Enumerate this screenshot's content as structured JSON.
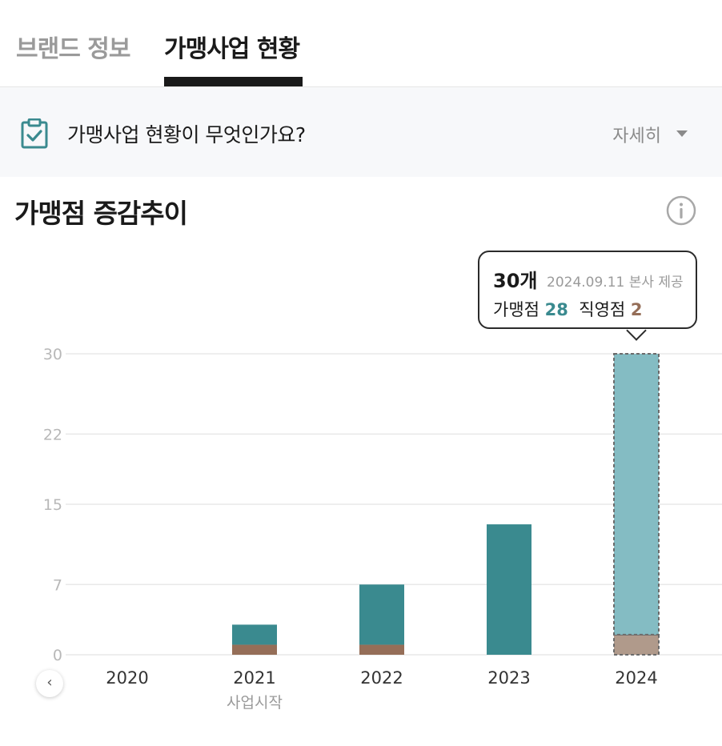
{
  "tabs": [
    {
      "label": "브랜드 정보",
      "active": false
    },
    {
      "label": "가맹사업 현황",
      "active": true
    }
  ],
  "faq": {
    "icon": "clipboard-check-icon",
    "question": "가맹사업 현황이 무엇인가요?",
    "more_label": "자세히",
    "more_icon": "caret-down-icon"
  },
  "section": {
    "title": "가맹점 증감추이",
    "info_icon": "info-icon"
  },
  "tooltip": {
    "total": "30개",
    "date_source": "2024.09.11 본사 제공",
    "franchise_label": "가맹점",
    "franchise_value": "28",
    "direct_label": "직영점",
    "direct_value": "2"
  },
  "colors": {
    "franchise": "#3a8a8f",
    "direct": "#956e58",
    "franchise_highlight": "#84bcc3",
    "direct_highlight": "#b09a8b"
  },
  "chart_data": {
    "type": "bar",
    "stacked": true,
    "categories": [
      "2020",
      "2021",
      "2022",
      "2023",
      "2024"
    ],
    "sublabels": [
      "",
      "사업시작",
      "",
      "",
      ""
    ],
    "series": [
      {
        "name": "직영점",
        "values": [
          0,
          1,
          1,
          0,
          2
        ]
      },
      {
        "name": "가맹점",
        "values": [
          0,
          2,
          6,
          13,
          28
        ]
      }
    ],
    "yticks": [
      0,
      7,
      15,
      22,
      30
    ],
    "ylim": [
      0,
      30
    ],
    "grid": true,
    "highlighted_category": "2024"
  },
  "scroll_left_icon": "chevron-left-icon"
}
